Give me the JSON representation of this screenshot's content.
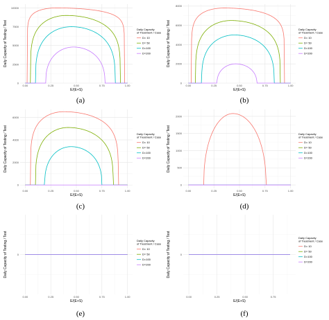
{
  "chart_data": [
    {
      "type": "line",
      "panel_label": "(a)",
      "xlabel": "E/(E+S)",
      "ylabel": "Daily Capacity of Testing / Test",
      "xlim": [
        -0.05,
        1.05
      ],
      "ylim": [
        0,
        10500
      ],
      "x_ticks": [
        "0.00",
        "0.25",
        "0.50",
        "0.75",
        "1.00"
      ],
      "y_ticks": [
        0,
        2500,
        5000,
        7500,
        10000
      ],
      "legend": {
        "title": [
          "Daily Capacity",
          "of Treatment / Case"
        ],
        "position": "right"
      },
      "series": [
        {
          "name": "D= 10",
          "color": "#F8766D",
          "shape": {
            "a": 0.02,
            "b": 0.97,
            "peak": 10000,
            "exp": 0.08,
            "px": 0.3
          }
        },
        {
          "name": "D= 50",
          "color": "#7CAE00",
          "shape": {
            "a": 0.05,
            "b": 0.93,
            "peak": 9000,
            "exp": 0.22,
            "px": 0.4
          }
        },
        {
          "name": "D=100",
          "color": "#00BFC4",
          "shape": {
            "a": 0.1,
            "b": 0.88,
            "peak": 7500,
            "exp": 0.3,
            "px": 0.45
          }
        },
        {
          "name": "D=200",
          "color": "#C77CFF",
          "shape": {
            "a": 0.2,
            "b": 0.78,
            "peak": 4800,
            "exp": 0.4,
            "px": 0.47
          }
        }
      ]
    },
    {
      "type": "line",
      "panel_label": "(b)",
      "xlabel": "E/(E+S)",
      "ylabel": "Daily Capacity of Testing / Test",
      "xlim": [
        -0.05,
        1.05
      ],
      "ylim": [
        0,
        8200
      ],
      "x_ticks": [
        "0.00",
        "0.25",
        "0.50",
        "0.75",
        "1.00"
      ],
      "y_ticks": [
        0,
        2000,
        4000,
        6000,
        8000
      ],
      "legend": {
        "title": [
          "Daily Capacity",
          "of Treatment / Case"
        ],
        "position": "right"
      },
      "series": [
        {
          "name": "D= 10",
          "color": "#F8766D",
          "shape": {
            "a": 0.03,
            "b": 0.94,
            "peak": 7800,
            "exp": 0.12,
            "px": 0.35
          }
        },
        {
          "name": "D= 50",
          "color": "#7CAE00",
          "shape": {
            "a": 0.07,
            "b": 0.9,
            "peak": 6500,
            "exp": 0.25,
            "px": 0.42
          }
        },
        {
          "name": "D=100",
          "color": "#00BFC4",
          "shape": {
            "a": 0.13,
            "b": 0.84,
            "peak": 5000,
            "exp": 0.33,
            "px": 0.45
          }
        },
        {
          "name": "D=200",
          "color": "#C77CFF",
          "shape": {
            "a": 0.28,
            "b": 0.67,
            "peak": 2000,
            "exp": 0.45,
            "px": 0.47
          }
        }
      ]
    },
    {
      "type": "line",
      "panel_label": "(c)",
      "xlabel": "E/(E+S)",
      "ylabel": "Daily Capacity of Testing / Test",
      "xlim": [
        -0.05,
        1.05
      ],
      "ylim": [
        -300,
        6700
      ],
      "x_ticks": [
        "0.00",
        "0.25",
        "0.50",
        "0.75",
        "1.00"
      ],
      "y_ticks": [
        0,
        2000,
        4000,
        6000
      ],
      "legend": {
        "title": [
          "Daily Capacity",
          "of Treatment / Case"
        ],
        "position": "right"
      },
      "series": [
        {
          "name": "D= 10",
          "color": "#F8766D",
          "shape": {
            "a": 0.05,
            "b": 0.91,
            "peak": 6500,
            "exp": 0.2,
            "px": 0.38
          }
        },
        {
          "name": "D= 50",
          "color": "#7CAE00",
          "shape": {
            "a": 0.1,
            "b": 0.86,
            "peak": 5100,
            "exp": 0.3,
            "px": 0.42
          }
        },
        {
          "name": "D=100",
          "color": "#00BFC4",
          "shape": {
            "a": 0.19,
            "b": 0.75,
            "peak": 3400,
            "exp": 0.4,
            "px": 0.46
          }
        },
        {
          "name": "D=200",
          "color": "#C77CFF",
          "shape": null
        }
      ]
    },
    {
      "type": "line",
      "panel_label": "(d)",
      "xlabel": "E/(E+S)",
      "ylabel": "Daily Capacity of Testing / Test",
      "xlim": [
        -0.05,
        1.05
      ],
      "ylim": [
        -100,
        2200
      ],
      "x_ticks": [
        "0.00",
        "0.25",
        "0.50",
        "0.75",
        "1.00"
      ],
      "y_ticks": [
        0,
        500,
        1000,
        1500,
        2000
      ],
      "legend": {
        "title": [
          "Daily Capacity",
          "of Treatment / Case"
        ],
        "position": "right"
      },
      "series": [
        {
          "name": "D= 10",
          "color": "#F8766D",
          "shape": {
            "a": 0.15,
            "b": 0.76,
            "peak": 2080,
            "exp": 0.45,
            "px": 0.47
          }
        },
        {
          "name": "D= 50",
          "color": "#7CAE00",
          "shape": null
        },
        {
          "name": "D=100",
          "color": "#00BFC4",
          "shape": null
        },
        {
          "name": "D=200",
          "color": "#C77CFF",
          "shape": null
        }
      ]
    },
    {
      "type": "line",
      "panel_label": "(e)",
      "xlabel": "E/(E+S)",
      "ylabel": "Daily Capacity of Testing / Test",
      "xlim": [
        -0.05,
        1.05
      ],
      "ylim": [
        -0.05,
        0.05
      ],
      "x_ticks": [
        "0.00",
        "0.25",
        "0.50",
        "0.75",
        "1.00"
      ],
      "y_ticks": [
        0
      ],
      "legend": {
        "title": [
          "Daily Capacity",
          "of Treatment / Case"
        ],
        "position": "right"
      },
      "series": [
        {
          "name": "D= 10",
          "color": "#F8766D",
          "shape": null
        },
        {
          "name": "D= 50",
          "color": "#7CAE00",
          "shape": null
        },
        {
          "name": "D=100",
          "color": "#00BFC4",
          "shape": null
        },
        {
          "name": "D=200",
          "color": "#C77CFF",
          "shape": null
        }
      ]
    },
    {
      "type": "line",
      "panel_label": "(f)",
      "xlabel": "E/(E+S)",
      "ylabel": "Daily Capacity of Testing / Test",
      "xlim": [
        -0.05,
        0.95
      ],
      "ylim": [
        -0.05,
        0.05
      ],
      "x_ticks": [
        "0.00",
        "0.25",
        "0.50",
        "0.75"
      ],
      "y_ticks": [
        0
      ],
      "legend": {
        "title": [
          "Daily Capacity",
          "of Treatment / Case"
        ],
        "position": "right"
      },
      "series": [
        {
          "name": "D= 10",
          "color": "#F8766D",
          "shape": null
        },
        {
          "name": "D= 50",
          "color": "#7CAE00",
          "shape": null
        },
        {
          "name": "D=100",
          "color": "#00BFC4",
          "shape": null
        },
        {
          "name": "D=200",
          "color": "#C77CFF",
          "shape": null
        }
      ]
    }
  ]
}
